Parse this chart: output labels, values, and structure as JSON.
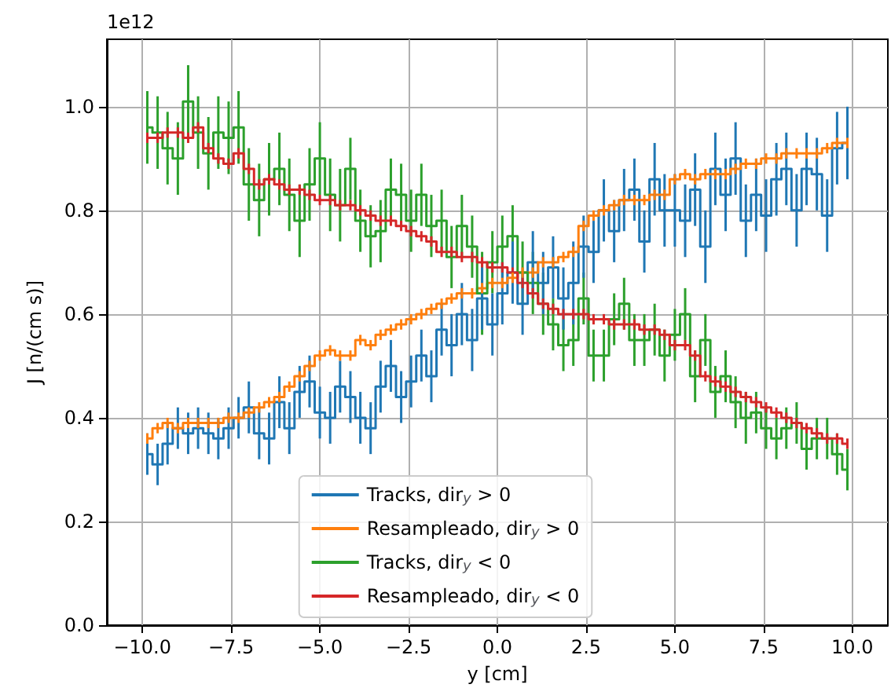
{
  "chart_data": {
    "type": "step",
    "xlabel": "y [cm]",
    "ylabel": "J [n/(cm s)]",
    "annotations": [
      "1e12"
    ],
    "x": [
      -9.86,
      -9.57,
      -9.29,
      -9.0,
      -8.71,
      -8.43,
      -8.14,
      -7.86,
      -7.57,
      -7.29,
      -7.0,
      -6.71,
      -6.43,
      -6.14,
      -5.86,
      -5.57,
      -5.29,
      -5.0,
      -4.71,
      -4.43,
      -4.14,
      -3.86,
      -3.57,
      -3.29,
      -3.0,
      -2.71,
      -2.43,
      -2.14,
      -1.86,
      -1.57,
      -1.29,
      -1.0,
      -0.71,
      -0.43,
      -0.14,
      0.14,
      0.43,
      0.71,
      1.0,
      1.29,
      1.57,
      1.86,
      2.14,
      2.43,
      2.71,
      3.0,
      3.29,
      3.57,
      3.86,
      4.14,
      4.43,
      4.71,
      5.0,
      5.29,
      5.57,
      5.86,
      6.14,
      6.43,
      6.71,
      7.0,
      7.29,
      7.57,
      7.86,
      8.14,
      8.43,
      8.71,
      9.0,
      9.29,
      9.57,
      9.86
    ],
    "series": [
      {
        "name": "Tracks, dir$_{y}$ > 0",
        "color": "#1f77b4",
        "values": [
          0.33,
          0.31,
          0.35,
          0.38,
          0.37,
          0.38,
          0.37,
          0.36,
          0.38,
          0.4,
          0.42,
          0.37,
          0.36,
          0.43,
          0.38,
          0.45,
          0.47,
          0.41,
          0.4,
          0.46,
          0.44,
          0.4,
          0.38,
          0.46,
          0.5,
          0.44,
          0.47,
          0.52,
          0.48,
          0.57,
          0.54,
          0.6,
          0.55,
          0.63,
          0.58,
          0.64,
          0.68,
          0.62,
          0.7,
          0.66,
          0.69,
          0.63,
          0.66,
          0.73,
          0.72,
          0.8,
          0.76,
          0.82,
          0.84,
          0.74,
          0.86,
          0.8,
          0.8,
          0.78,
          0.84,
          0.73,
          0.88,
          0.83,
          0.9,
          0.78,
          0.83,
          0.79,
          0.86,
          0.88,
          0.8,
          0.88,
          0.87,
          0.79,
          0.92,
          0.93
        ],
        "errors": [
          0.04,
          0.04,
          0.04,
          0.04,
          0.04,
          0.04,
          0.04,
          0.04,
          0.04,
          0.04,
          0.05,
          0.05,
          0.05,
          0.05,
          0.05,
          0.05,
          0.05,
          0.05,
          0.05,
          0.05,
          0.05,
          0.05,
          0.05,
          0.05,
          0.05,
          0.05,
          0.05,
          0.05,
          0.05,
          0.05,
          0.06,
          0.06,
          0.06,
          0.06,
          0.06,
          0.06,
          0.06,
          0.06,
          0.06,
          0.06,
          0.06,
          0.06,
          0.08,
          0.06,
          0.06,
          0.06,
          0.06,
          0.06,
          0.06,
          0.06,
          0.07,
          0.07,
          0.07,
          0.07,
          0.07,
          0.07,
          0.07,
          0.07,
          0.07,
          0.07,
          0.07,
          0.07,
          0.07,
          0.07,
          0.07,
          0.07,
          0.07,
          0.07,
          0.07,
          0.07
        ]
      },
      {
        "name": "Resampleado, dir$_{y}$ > 0",
        "color": "#ff7f0e",
        "values": [
          0.36,
          0.38,
          0.39,
          0.38,
          0.39,
          0.39,
          0.39,
          0.39,
          0.4,
          0.4,
          0.41,
          0.42,
          0.43,
          0.44,
          0.46,
          0.48,
          0.5,
          0.52,
          0.53,
          0.52,
          0.52,
          0.55,
          0.54,
          0.56,
          0.57,
          0.58,
          0.59,
          0.6,
          0.61,
          0.62,
          0.63,
          0.64,
          0.64,
          0.65,
          0.66,
          0.66,
          0.67,
          0.68,
          0.68,
          0.7,
          0.7,
          0.71,
          0.72,
          0.77,
          0.79,
          0.8,
          0.81,
          0.82,
          0.82,
          0.82,
          0.83,
          0.83,
          0.86,
          0.87,
          0.86,
          0.87,
          0.87,
          0.87,
          0.88,
          0.89,
          0.89,
          0.9,
          0.9,
          0.91,
          0.91,
          0.91,
          0.91,
          0.92,
          0.93,
          0.93
        ],
        "errors": [
          0.01,
          0.01,
          0.01,
          0.01,
          0.01,
          0.01,
          0.01,
          0.01,
          0.01,
          0.01,
          0.01,
          0.01,
          0.01,
          0.01,
          0.01,
          0.01,
          0.01,
          0.01,
          0.01,
          0.01,
          0.01,
          0.01,
          0.01,
          0.01,
          0.01,
          0.01,
          0.01,
          0.01,
          0.01,
          0.01,
          0.01,
          0.01,
          0.01,
          0.01,
          0.01,
          0.01,
          0.01,
          0.01,
          0.01,
          0.01,
          0.01,
          0.01,
          0.01,
          0.01,
          0.01,
          0.01,
          0.01,
          0.01,
          0.01,
          0.01,
          0.01,
          0.01,
          0.01,
          0.01,
          0.01,
          0.01,
          0.01,
          0.01,
          0.01,
          0.01,
          0.01,
          0.01,
          0.01,
          0.01,
          0.01,
          0.01,
          0.01,
          0.01,
          0.01,
          0.01
        ]
      },
      {
        "name": "Tracks, dir$_{y}$ < 0",
        "color": "#2ca02c",
        "values": [
          0.96,
          0.95,
          0.92,
          0.9,
          1.01,
          0.95,
          0.91,
          0.95,
          0.94,
          0.96,
          0.85,
          0.82,
          0.86,
          0.88,
          0.83,
          0.78,
          0.85,
          0.9,
          0.83,
          0.81,
          0.88,
          0.78,
          0.75,
          0.76,
          0.84,
          0.83,
          0.78,
          0.83,
          0.77,
          0.78,
          0.71,
          0.77,
          0.73,
          0.64,
          0.7,
          0.73,
          0.75,
          0.68,
          0.66,
          0.62,
          0.58,
          0.54,
          0.55,
          0.63,
          0.52,
          0.52,
          0.59,
          0.62,
          0.55,
          0.55,
          0.57,
          0.52,
          0.56,
          0.6,
          0.48,
          0.55,
          0.45,
          0.48,
          0.43,
          0.4,
          0.41,
          0.38,
          0.36,
          0.38,
          0.39,
          0.34,
          0.36,
          0.36,
          0.33,
          0.3
        ],
        "errors": [
          0.07,
          0.07,
          0.07,
          0.07,
          0.07,
          0.07,
          0.07,
          0.07,
          0.07,
          0.07,
          0.07,
          0.07,
          0.07,
          0.07,
          0.07,
          0.07,
          0.07,
          0.07,
          0.07,
          0.07,
          0.06,
          0.06,
          0.06,
          0.06,
          0.06,
          0.06,
          0.06,
          0.06,
          0.06,
          0.06,
          0.06,
          0.06,
          0.06,
          0.08,
          0.06,
          0.06,
          0.06,
          0.06,
          0.06,
          0.06,
          0.05,
          0.05,
          0.05,
          0.05,
          0.05,
          0.05,
          0.05,
          0.05,
          0.05,
          0.05,
          0.05,
          0.05,
          0.05,
          0.05,
          0.05,
          0.05,
          0.05,
          0.05,
          0.05,
          0.05,
          0.04,
          0.04,
          0.04,
          0.04,
          0.04,
          0.04,
          0.04,
          0.04,
          0.04,
          0.04
        ]
      },
      {
        "name": "Resampleado, dir$_{y}$ < 0",
        "color": "#d62728",
        "values": [
          0.94,
          0.94,
          0.95,
          0.95,
          0.94,
          0.96,
          0.92,
          0.9,
          0.89,
          0.91,
          0.88,
          0.85,
          0.86,
          0.85,
          0.84,
          0.84,
          0.83,
          0.82,
          0.82,
          0.81,
          0.81,
          0.8,
          0.79,
          0.78,
          0.78,
          0.77,
          0.76,
          0.75,
          0.74,
          0.72,
          0.72,
          0.71,
          0.71,
          0.7,
          0.69,
          0.69,
          0.68,
          0.66,
          0.64,
          0.62,
          0.61,
          0.6,
          0.6,
          0.6,
          0.59,
          0.59,
          0.58,
          0.58,
          0.58,
          0.57,
          0.57,
          0.56,
          0.54,
          0.54,
          0.52,
          0.48,
          0.47,
          0.46,
          0.45,
          0.44,
          0.43,
          0.42,
          0.41,
          0.4,
          0.39,
          0.38,
          0.37,
          0.36,
          0.36,
          0.35
        ],
        "errors": [
          0.01,
          0.01,
          0.01,
          0.01,
          0.01,
          0.01,
          0.01,
          0.01,
          0.01,
          0.01,
          0.01,
          0.01,
          0.01,
          0.01,
          0.01,
          0.01,
          0.01,
          0.01,
          0.01,
          0.01,
          0.01,
          0.01,
          0.01,
          0.01,
          0.01,
          0.01,
          0.01,
          0.01,
          0.01,
          0.01,
          0.01,
          0.01,
          0.01,
          0.01,
          0.01,
          0.01,
          0.01,
          0.01,
          0.01,
          0.01,
          0.01,
          0.01,
          0.01,
          0.01,
          0.01,
          0.01,
          0.01,
          0.01,
          0.01,
          0.01,
          0.01,
          0.01,
          0.01,
          0.01,
          0.01,
          0.01,
          0.01,
          0.01,
          0.01,
          0.01,
          0.01,
          0.01,
          0.01,
          0.01,
          0.01,
          0.01,
          0.01,
          0.01,
          0.01,
          0.01
        ]
      }
    ],
    "xlim": [
      -11,
      11
    ],
    "xticks": [
      {
        "value": -10,
        "label": "−10.0"
      },
      {
        "value": -7.5,
        "label": "−7.5"
      },
      {
        "value": -5,
        "label": "−5.0"
      },
      {
        "value": -2.5,
        "label": "−2.5"
      },
      {
        "value": 0,
        "label": "0.0"
      },
      {
        "value": 2.5,
        "label": "2.5"
      },
      {
        "value": 5,
        "label": "5.0"
      },
      {
        "value": 7.5,
        "label": "7.5"
      },
      {
        "value": 10,
        "label": "10.0"
      }
    ],
    "ylim": [
      0,
      1.13
    ],
    "yticks": [
      {
        "value": 0,
        "label": "0.0"
      },
      0.2,
      0.4,
      0.6,
      0.8,
      {
        "value": 1,
        "label": "1.0"
      }
    ],
    "grid": true,
    "legend": "bottom"
  }
}
